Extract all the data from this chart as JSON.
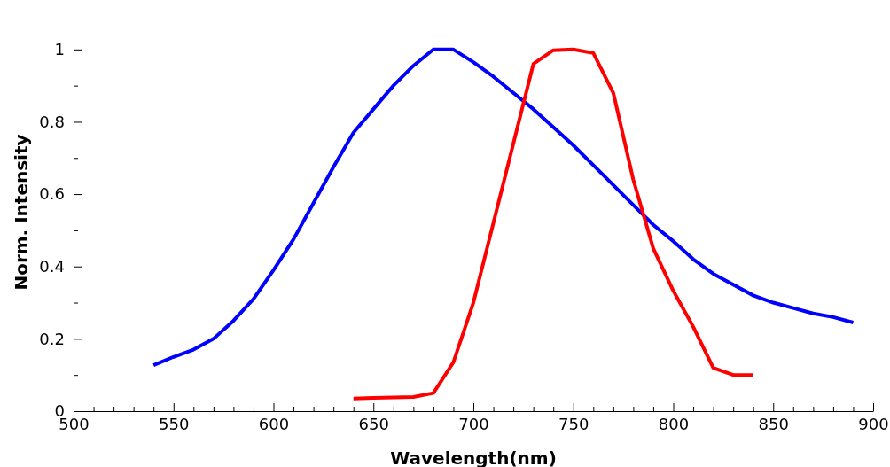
{
  "chart_data": {
    "type": "line",
    "xlabel": "Wavelength(nm)",
    "ylabel": "Norm. Intensity",
    "xlim": [
      500,
      900
    ],
    "ylim": [
      0,
      1.1
    ],
    "xticks": [
      500,
      {
        "value": 510,
        "label": null
      },
      {
        "value": 520,
        "label": null
      },
      {
        "value": 530,
        "label": null
      },
      {
        "value": 540,
        "label": null
      },
      550,
      {
        "value": 560,
        "label": null
      },
      {
        "value": 570,
        "label": null
      },
      {
        "value": 580,
        "label": null
      },
      {
        "value": 590,
        "label": null
      },
      600,
      {
        "value": 610,
        "label": null
      },
      {
        "value": 620,
        "label": null
      },
      {
        "value": 630,
        "label": null
      },
      {
        "value": 640,
        "label": null
      },
      650,
      {
        "value": 660,
        "label": null
      },
      {
        "value": 670,
        "label": null
      },
      {
        "value": 680,
        "label": null
      },
      {
        "value": 690,
        "label": null
      },
      700,
      {
        "value": 710,
        "label": null
      },
      {
        "value": 720,
        "label": null
      },
      {
        "value": 730,
        "label": null
      },
      {
        "value": 740,
        "label": null
      },
      750,
      {
        "value": 760,
        "label": null
      },
      {
        "value": 770,
        "label": null
      },
      {
        "value": 780,
        "label": null
      },
      {
        "value": 790,
        "label": null
      },
      800,
      {
        "value": 810,
        "label": null
      },
      {
        "value": 820,
        "label": null
      },
      {
        "value": 830,
        "label": null
      },
      {
        "value": 840,
        "label": null
      },
      850,
      {
        "value": 860,
        "label": null
      },
      {
        "value": 870,
        "label": null
      },
      {
        "value": 880,
        "label": null
      },
      {
        "value": 890,
        "label": null
      },
      900
    ],
    "yticks": [
      0,
      {
        "value": 0.1,
        "label": null
      },
      0.2,
      {
        "value": 0.3,
        "label": null
      },
      0.4,
      {
        "value": 0.5,
        "label": null
      },
      0.6,
      {
        "value": 0.7,
        "label": null
      },
      0.8,
      {
        "value": 0.9,
        "label": null
      },
      1
    ],
    "grid": false,
    "line_style": "solid",
    "marker": "none",
    "series": [
      {
        "color": "#0000ff",
        "x": [
          540,
          550,
          560,
          570,
          580,
          590,
          600,
          610,
          620,
          630,
          640,
          650,
          660,
          670,
          680,
          690,
          700,
          710,
          720,
          730,
          740,
          750,
          760,
          770,
          780,
          790,
          800,
          810,
          820,
          830,
          840,
          850,
          860,
          870,
          880,
          890
        ],
        "values": [
          0.127,
          0.15,
          0.17,
          0.2,
          0.25,
          0.31,
          0.39,
          0.475,
          0.575,
          0.675,
          0.77,
          0.835,
          0.9,
          0.955,
          1.0,
          1.0,
          0.965,
          0.925,
          0.88,
          0.835,
          0.785,
          0.735,
          0.68,
          0.625,
          0.57,
          0.515,
          0.47,
          0.42,
          0.38,
          0.35,
          0.32,
          0.3,
          0.285,
          0.27,
          0.26,
          0.245
        ]
      },
      {
        "color": "#ff0000",
        "x": [
          640,
          650,
          660,
          670,
          680,
          690,
          700,
          710,
          720,
          730,
          740,
          750,
          760,
          770,
          780,
          790,
          800,
          810,
          820,
          830,
          840
        ],
        "values": [
          0.035,
          0.037,
          0.038,
          0.039,
          0.05,
          0.135,
          0.3,
          0.52,
          0.74,
          0.96,
          0.998,
          1.0,
          0.99,
          0.88,
          0.64,
          0.45,
          0.333,
          0.233,
          0.12,
          0.1,
          0.1
        ]
      }
    ]
  }
}
